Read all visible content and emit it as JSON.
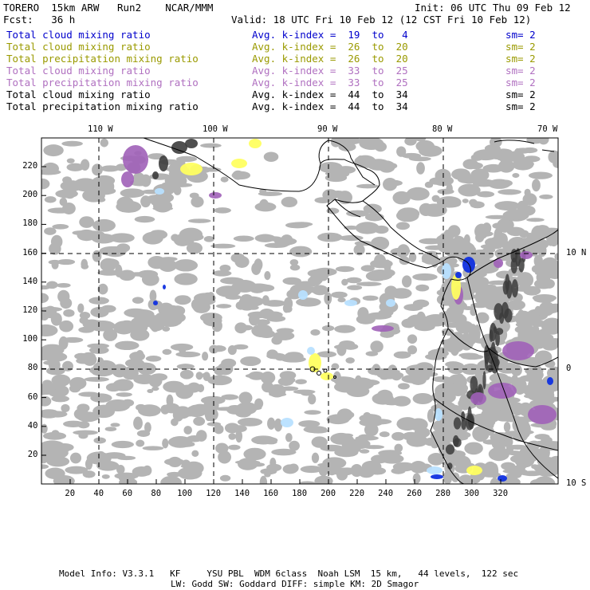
{
  "header": {
    "model": "TORERO  15km ARW   Run2    NCAR/MMM",
    "init": "Init: 06 UTC Thu 09 Feb 12",
    "fcst": "Fcst:   36 h",
    "valid": "Valid: 18 UTC Fri 10 Feb 12 (12 CST Fri 10 Feb 12)"
  },
  "legend": [
    {
      "field": "Total cloud mixing ratio",
      "kindex": "Avg. k-index =  19  to   4",
      "sm": "sm= 2",
      "color": "#0000cc"
    },
    {
      "field": "Total cloud mixing ratio",
      "kindex": "Avg. k-index =  26  to  20",
      "sm": "sm= 2",
      "color": "#9a9a00"
    },
    {
      "field": "Total precipitation mixing ratio",
      "kindex": "Avg. k-index =  26  to  20",
      "sm": "sm= 2",
      "color": "#9a9a00"
    },
    {
      "field": "Total cloud mixing ratio",
      "kindex": "Avg. k-index =  33  to  25",
      "sm": "sm= 2",
      "color": "#b070c0"
    },
    {
      "field": "Total precipitation mixing ratio",
      "kindex": "Avg. k-index =  33  to  25",
      "sm": "sm= 2",
      "color": "#b070c0"
    },
    {
      "field": "Total cloud mixing ratio",
      "kindex": "Avg. k-index =  44  to  34",
      "sm": "sm= 2",
      "color": "#000000"
    },
    {
      "field": "Total precipitation mixing ratio",
      "kindex": "Avg. k-index =  44  to  34",
      "sm": "sm= 2",
      "color": "#000000"
    }
  ],
  "map": {
    "longitude_labels": [
      "110 W",
      "100 W",
      "90 W",
      "80 W",
      "70 W"
    ],
    "latitude_labels": [
      "10 N",
      "0",
      "10 S"
    ],
    "x_grid_labels": [
      "20",
      "40",
      "60",
      "80",
      "100",
      "120",
      "140",
      "160",
      "180",
      "200",
      "220",
      "240",
      "260",
      "280",
      "300",
      "320"
    ],
    "y_grid_labels": [
      "20",
      "40",
      "60",
      "80",
      "100",
      "120",
      "140",
      "160",
      "180",
      "200",
      "220"
    ],
    "colors": {
      "gray": "#b4b4b4",
      "dark": "#3c3c3c",
      "yellow": "#ffff60",
      "purple": "#a060b8",
      "blue": "#1030e0",
      "lightblue": "#b8e0ff"
    }
  },
  "footer": {
    "line1": "Model Info: V3.3.1   KF     YSU PBL  WDM 6class  Noah LSM  15 km,   44 levels,  122 sec",
    "line2": "LW: Godd SW: Goddard DIFF: simple KM: 2D Smagor"
  }
}
